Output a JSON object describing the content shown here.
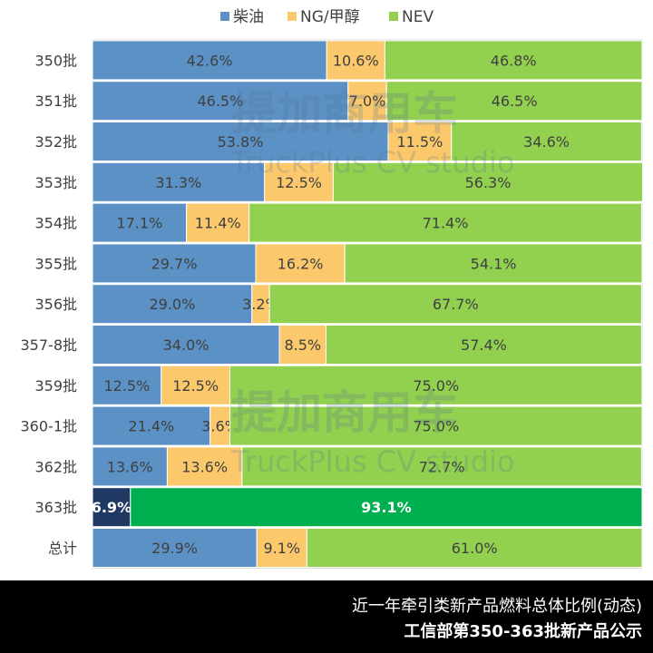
{
  "chart_data": {
    "type": "bar",
    "orientation": "horizontal",
    "stacked": "percent",
    "legend_position": "top-center",
    "legend": [
      {
        "name": "柴油",
        "color": "#5b91c4"
      },
      {
        "name": "NG/甲醇",
        "color": "#fbc96b"
      },
      {
        "name": "NEV",
        "color": "#92d050"
      }
    ],
    "categories": [
      "350批",
      "351批",
      "352批",
      "353批",
      "354批",
      "355批",
      "356批",
      "357-8批",
      "359批",
      "360-1批",
      "362批",
      "363批",
      "总计"
    ],
    "series": [
      {
        "name": "柴油",
        "values": [
          42.6,
          46.5,
          53.8,
          31.3,
          17.1,
          29.7,
          29.0,
          34.0,
          12.5,
          21.4,
          13.6,
          6.9,
          29.9
        ],
        "labels": [
          "42.6%",
          "46.5%",
          "53.8%",
          "31.3%",
          "17.1%",
          "29.7%",
          "29.0%",
          "34.0%",
          "12.5%",
          "21.4%",
          "13.6%",
          "6.9%",
          "29.9%"
        ]
      },
      {
        "name": "NG/甲醇",
        "values": [
          10.6,
          7.0,
          11.5,
          12.5,
          11.4,
          16.2,
          3.2,
          8.5,
          12.5,
          3.6,
          13.6,
          0,
          9.1
        ],
        "labels": [
          "10.6%",
          "7.0%",
          "11.5%",
          "12.5%",
          "11.4%",
          "16.2%",
          "3.2%",
          "8.5%",
          "12.5%",
          "3.6%",
          "13.6%",
          "",
          "9.1%"
        ]
      },
      {
        "name": "NEV",
        "values": [
          46.8,
          46.5,
          34.6,
          56.3,
          71.4,
          54.1,
          67.7,
          57.4,
          75.0,
          75.0,
          72.7,
          93.1,
          61.0
        ],
        "labels": [
          "46.8%",
          "46.5%",
          "34.6%",
          "56.3%",
          "71.4%",
          "54.1%",
          "67.7%",
          "57.4%",
          "75.0%",
          "75.0%",
          "72.7%",
          "93.1%",
          "61.0%"
        ]
      }
    ],
    "highlight": {
      "category": "363批",
      "colors": [
        "#1f3864",
        "#fbc96b",
        "#00b050"
      ]
    },
    "xlim": [
      0,
      100
    ]
  },
  "watermark": {
    "brand": "提加商用车",
    "sub": "TruckPlus CV studio"
  },
  "footer": {
    "line1": "近一年牵引类新产品燃料总体比例(动态)",
    "line2": "工信部第350-363批新产品公示"
  }
}
